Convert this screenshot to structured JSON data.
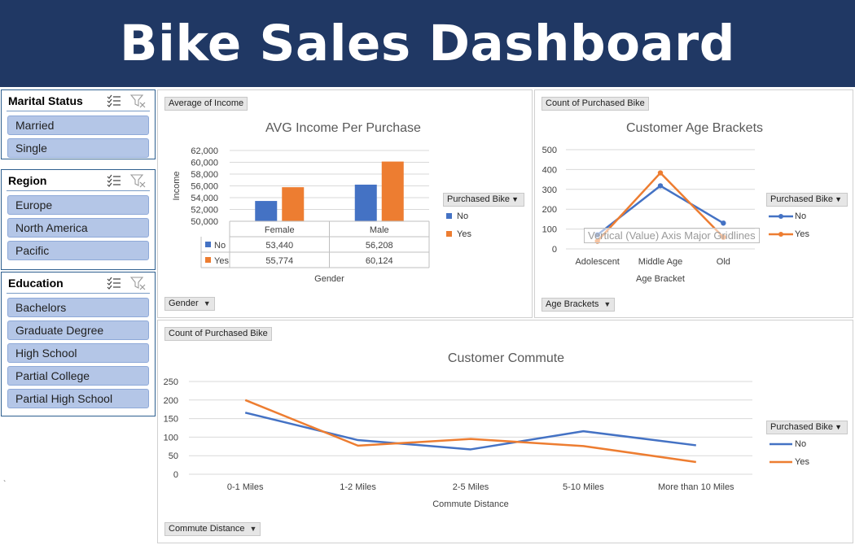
{
  "header": {
    "title": "Bike Sales Dashboard"
  },
  "slicers": {
    "marital": {
      "title": "Marital Status",
      "items": [
        "Married",
        "Single"
      ]
    },
    "region": {
      "title": "Region",
      "items": [
        "Europe",
        "North America",
        "Pacific"
      ]
    },
    "education": {
      "title": "Education",
      "items": [
        "Bachelors",
        "Graduate Degree",
        "High School",
        "Partial College",
        "Partial High School"
      ]
    }
  },
  "income_panel": {
    "value_button": "Average of Income",
    "axis_button": "Gender",
    "legend_title": "Purchased Bike"
  },
  "age_panel": {
    "value_button": "Count of Purchased Bike",
    "axis_button": "Age Brackets",
    "legend_title": "Purchased Bike",
    "hover_tooltip": "Vertical (Value) Axis Major Gridlines"
  },
  "commute_panel": {
    "value_button": "Count of Purchased Bike",
    "axis_button": "Commute Distance",
    "legend_title": "Purchased Bike"
  },
  "colors": {
    "no": "#4472c4",
    "yes": "#ed7d31",
    "banner": "#203864",
    "slicer_item": "#b4c6e7"
  },
  "stray_mark": "`",
  "chart_data": [
    {
      "id": "income",
      "type": "bar",
      "title": "AVG Income Per Purchase",
      "xlabel": "Gender",
      "ylabel": "Income",
      "categories": [
        "Female",
        "Male"
      ],
      "series": [
        {
          "name": "No",
          "values": [
            53440,
            56208
          ]
        },
        {
          "name": "Yes",
          "values": [
            55774,
            60124
          ]
        }
      ],
      "table_values": [
        [
          "53,440",
          "56,208"
        ],
        [
          "55,774",
          "60,124"
        ]
      ],
      "ylim": [
        50000,
        62000
      ],
      "yticks": [
        "50,000",
        "52,000",
        "54,000",
        "56,000",
        "58,000",
        "60,000",
        "62,000"
      ],
      "legend": "right",
      "grid": true
    },
    {
      "id": "age",
      "type": "line",
      "title": "Customer Age Brackets",
      "xlabel": "Age Bracket",
      "ylabel": "",
      "categories": [
        "Adolescent",
        "Middle Age",
        "Old"
      ],
      "series": [
        {
          "name": "No",
          "values": [
            71,
            318,
            130
          ]
        },
        {
          "name": "Yes",
          "values": [
            39,
            383,
            59
          ]
        }
      ],
      "ylim": [
        0,
        500
      ],
      "yticks": [
        "0",
        "100",
        "200",
        "300",
        "400",
        "500"
      ],
      "legend": "right",
      "grid": true
    },
    {
      "id": "commute",
      "type": "line",
      "title": "Customer Commute",
      "xlabel": "Commute Distance",
      "ylabel": "",
      "categories": [
        "0-1 Miles",
        "1-2 Miles",
        "2-5 Miles",
        "5-10 Miles",
        "More than 10 Miles"
      ],
      "series": [
        {
          "name": "No",
          "values": [
            166,
            92,
            67,
            116,
            78
          ]
        },
        {
          "name": "Yes",
          "values": [
            200,
            77,
            95,
            76,
            33
          ]
        }
      ],
      "ylim": [
        0,
        250
      ],
      "yticks": [
        "0",
        "50",
        "100",
        "150",
        "200",
        "250"
      ],
      "legend": "right",
      "grid": true
    }
  ]
}
